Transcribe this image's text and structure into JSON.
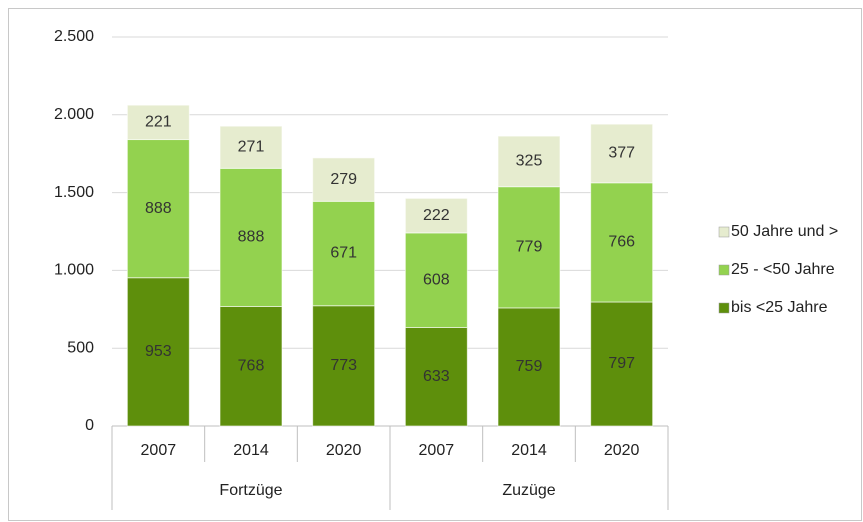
{
  "chart_data": {
    "type": "bar",
    "stacked": true,
    "categories": [
      "2007",
      "2014",
      "2020",
      "2007",
      "2014",
      "2020"
    ],
    "groups": [
      "Fortzüge",
      "Zuzüge"
    ],
    "series": [
      {
        "name": "bis <25 Jahre",
        "color": "#5e8f0c",
        "values": [
          953,
          768,
          773,
          633,
          759,
          797
        ]
      },
      {
        "name": "25 - <50 Jahre",
        "color": "#93d24f",
        "values": [
          888,
          888,
          671,
          608,
          779,
          766
        ]
      },
      {
        "name": "50 Jahre und >",
        "color": "#e6eccf",
        "values": [
          221,
          271,
          279,
          222,
          325,
          377
        ]
      }
    ],
    "ylim": [
      0,
      2500
    ],
    "yticks": [
      0,
      500,
      {
        "value": 1000,
        "label": "1.000"
      },
      {
        "value": 1500,
        "label": "1.500"
      },
      {
        "value": 2000,
        "label": "2.000"
      },
      {
        "value": 2500,
        "label": "2.500"
      }
    ],
    "grid": true,
    "legend": "right"
  }
}
